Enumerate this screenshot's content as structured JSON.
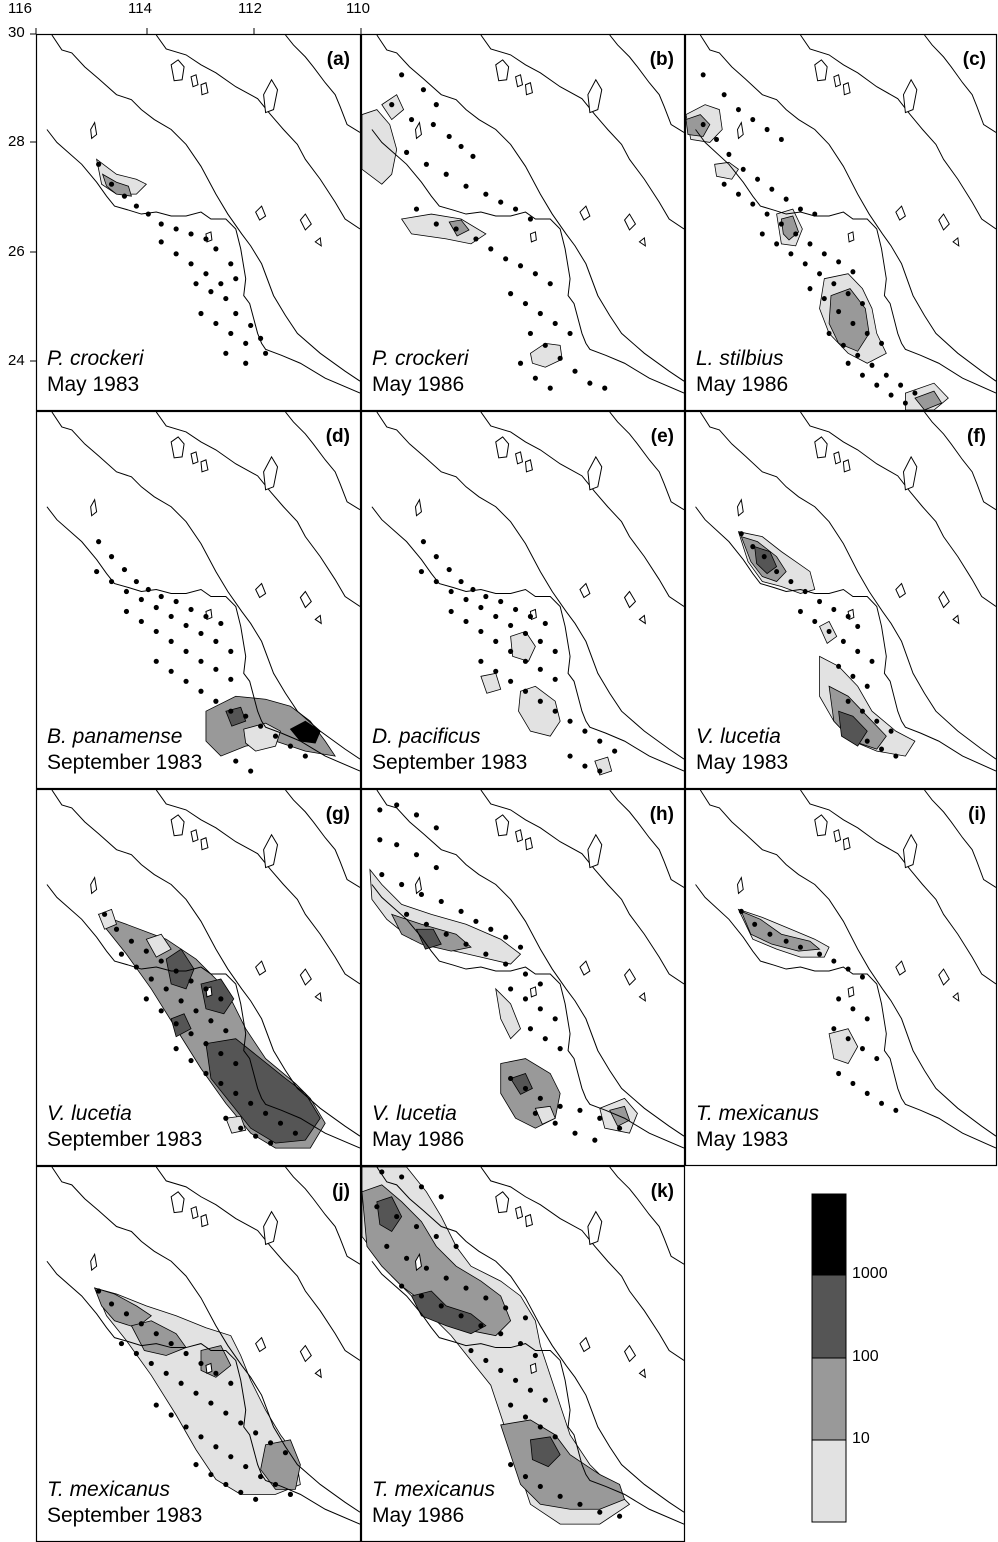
{
  "axes": {
    "longitude_labels": [
      "116",
      "114",
      "112",
      "110"
    ],
    "latitude_labels": [
      "30",
      "28",
      "26",
      "24"
    ]
  },
  "panels": [
    {
      "letter": "(a)",
      "species": "P. crockeri",
      "date": "May 1983"
    },
    {
      "letter": "(b)",
      "species": "P. crockeri",
      "date": "May 1986"
    },
    {
      "letter": "(c)",
      "species": "L. stilbius",
      "date": "May 1986"
    },
    {
      "letter": "(d)",
      "species": "B. panamense",
      "date": "September 1983"
    },
    {
      "letter": "(e)",
      "species": "D. pacificus",
      "date": "September 1983"
    },
    {
      "letter": "(f)",
      "species": "V. lucetia",
      "date": "May 1983"
    },
    {
      "letter": "(g)",
      "species": "V. lucetia",
      "date": "September 1983"
    },
    {
      "letter": "(h)",
      "species": "V. lucetia",
      "date": "May 1986"
    },
    {
      "letter": "(i)",
      "species": "T. mexicanus",
      "date": "May 1983"
    },
    {
      "letter": "(j)",
      "species": "T. mexicanus",
      "date": "September 1983"
    },
    {
      "letter": "(k)",
      "species": "T. mexicanus",
      "date": "May 1986"
    }
  ],
  "legend": {
    "labels": [
      "1000",
      "100",
      "10"
    ],
    "colors": [
      "#000000",
      "#555555",
      "#999999",
      "#e2e2e2"
    ]
  },
  "colors": {
    "frame": "#000000",
    "coast": "#000000",
    "station": "#000000",
    "class_10_100": "#e2e2e2",
    "class_100_1000": "#999999",
    "class_1000_plus": "#555555",
    "class_max": "#000000"
  }
}
